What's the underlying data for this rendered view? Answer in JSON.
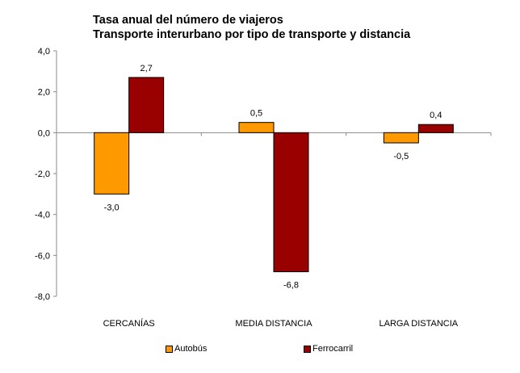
{
  "chart_data": {
    "type": "bar",
    "title": "Tasa anual del número de viajeros",
    "subtitle": "Transporte interurbano por tipo de transporte y distancia",
    "xlabel": "",
    "ylabel": "",
    "categories": [
      "CERCANÍAS",
      "MEDIA DISTANCIA",
      "LARGA DISTANCIA"
    ],
    "series": [
      {
        "name": "Autobús",
        "color": "#FF9900",
        "values": [
          -3.0,
          0.5,
          -0.5
        ],
        "labels": [
          "-3,0",
          "0,5",
          "-0,5"
        ]
      },
      {
        "name": "Ferrocarril",
        "color": "#990000",
        "values": [
          2.7,
          -6.8,
          0.4
        ],
        "labels": [
          "2,7",
          "-6,8",
          "0,4"
        ]
      }
    ],
    "ylim": [
      -8,
      4
    ],
    "yticks": [
      4,
      2,
      0,
      -2,
      -4,
      -6,
      -8
    ],
    "ytick_labels": [
      "4,0",
      "2,0",
      "0,0",
      "-2,0",
      "-4,0",
      "-6,0",
      "-8,0"
    ],
    "grid": false,
    "legend_position": "bottom"
  }
}
